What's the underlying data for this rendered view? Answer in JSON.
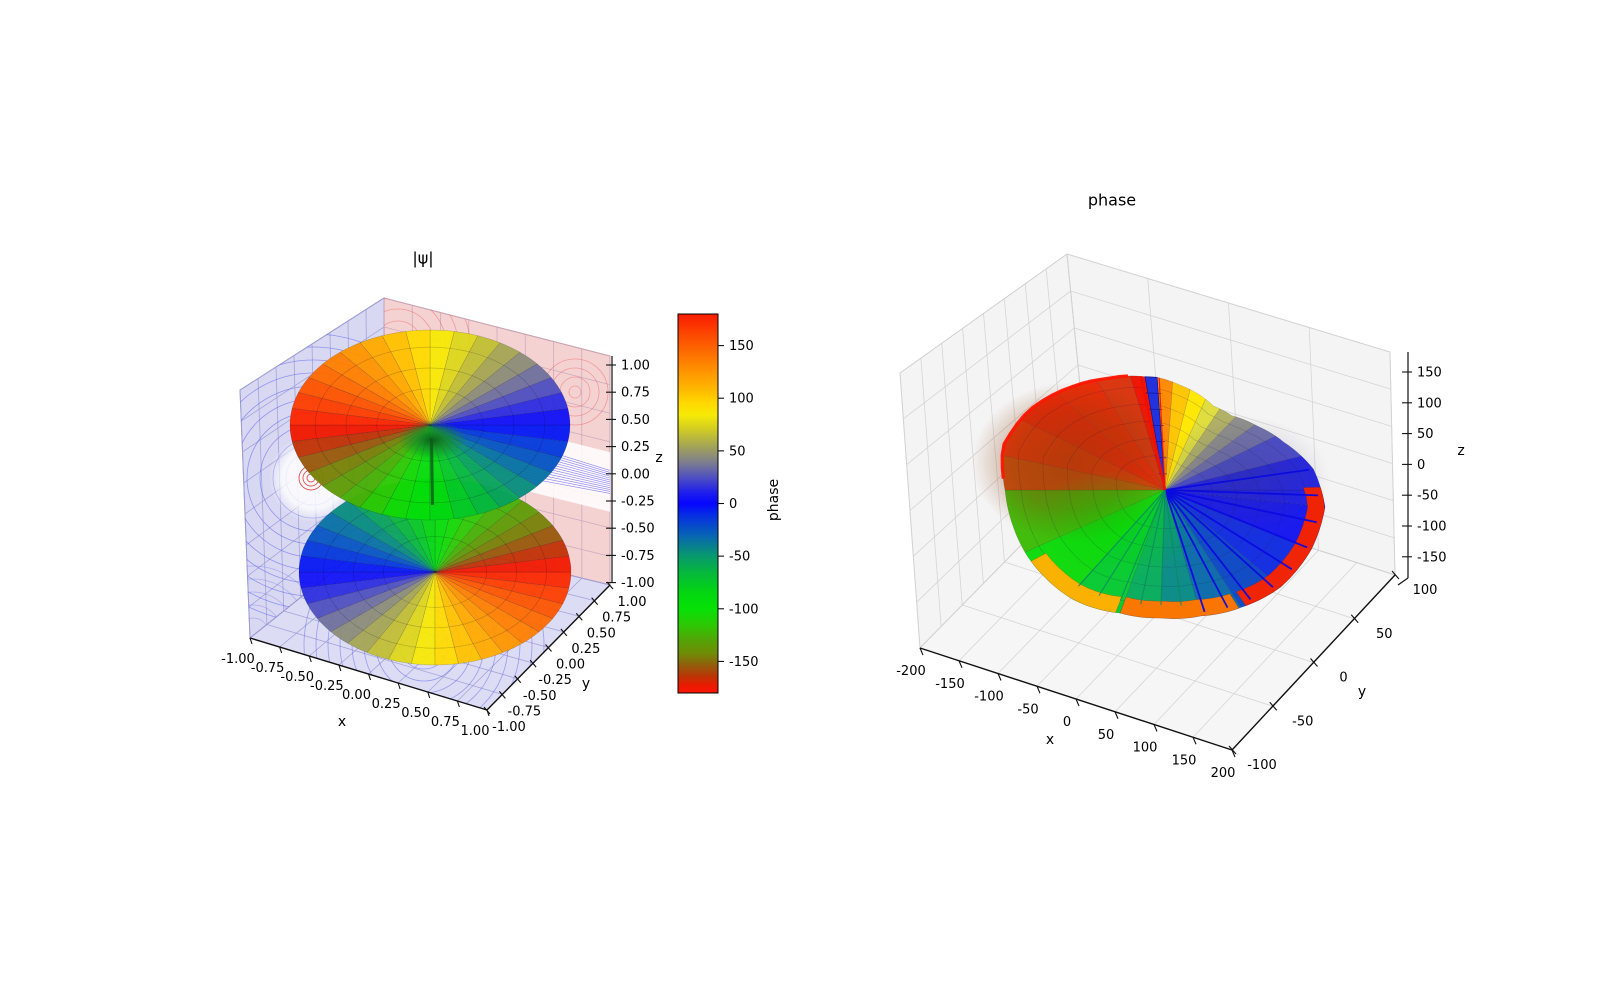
{
  "figure": {
    "background": "#ffffff"
  },
  "left_plot": {
    "title": "|ψ|",
    "xlabel": "x",
    "ylabel": "y",
    "zlabel": "z",
    "x_ticks": [
      "-1.00",
      "-0.75",
      "-0.50",
      "-0.25",
      "0.00",
      "0.25",
      "0.50",
      "0.75",
      "1.00"
    ],
    "y_ticks": [
      "-1.00",
      "-0.75",
      "-0.50",
      "-0.25",
      "0.00",
      "0.25",
      "0.50",
      "0.75",
      "1.00"
    ],
    "z_ticks": [
      "1.00",
      "0.75",
      "0.50",
      "0.25",
      "0.00",
      "-0.25",
      "-0.50",
      "-0.75",
      "-1.00"
    ],
    "pane_colors": {
      "left": "#d8d8f2",
      "right": "#f5d2d2",
      "floor": "#dcdcf4"
    },
    "grid_colors": {
      "left": "#9e9ed8",
      "right": "#c9a6bc",
      "floor": "#9e9ed8"
    },
    "contour_colors": {
      "blue": "#5a5af0",
      "red": "#ee6060"
    }
  },
  "colorbar": {
    "label": "phase",
    "ticks": [
      "150",
      "100",
      "50",
      "0",
      "-50",
      "-100",
      "-150"
    ],
    "tick_values": [
      150,
      100,
      50,
      0,
      -50,
      -100,
      -150
    ],
    "vmin": -180,
    "vmax": 180,
    "stops": [
      [
        180,
        "#fa1c00"
      ],
      [
        150,
        "#fd5f00"
      ],
      [
        122,
        "#fe9b00"
      ],
      [
        108,
        "#ffb900"
      ],
      [
        96,
        "#ffd800"
      ],
      [
        84,
        "#f6ea06"
      ],
      [
        70,
        "#cfcb26"
      ],
      [
        55,
        "#a5a554"
      ],
      [
        40,
        "#80808c"
      ],
      [
        25,
        "#5050c0"
      ],
      [
        10,
        "#1d1dee"
      ],
      [
        0,
        "#0606fe"
      ],
      [
        -12,
        "#0531e2"
      ],
      [
        -30,
        "#0763b5"
      ],
      [
        -48,
        "#089473"
      ],
      [
        -65,
        "#06b73e"
      ],
      [
        -85,
        "#03d611"
      ],
      [
        -100,
        "#06e106"
      ],
      [
        -115,
        "#2cc904"
      ],
      [
        -130,
        "#54a306"
      ],
      [
        -142,
        "#6f8d05"
      ],
      [
        -154,
        "#935c0c"
      ],
      [
        -164,
        "#bb3505"
      ],
      [
        -173,
        "#ec1a01"
      ],
      [
        -180,
        "#fb1500"
      ]
    ]
  },
  "right_plot": {
    "title": "phase",
    "xlabel": "x",
    "ylabel": "y",
    "zlabel": "z",
    "x_ticks": [
      "-200",
      "-150",
      "-100",
      "-50",
      "0",
      "50",
      "100",
      "150",
      "200"
    ],
    "y_ticks": [
      "-100",
      "-50",
      "0",
      "50",
      "100"
    ],
    "z_ticks": [
      "150",
      "100",
      "50",
      "0",
      "-50",
      "-100",
      "-150"
    ],
    "pane_color": "#f4f4f4",
    "grid_color": "#d2d2d2",
    "surface": {
      "center_color_note": "cyclic phase coloring",
      "spoke_color": "#0a0ae0",
      "teal_spoke_color": "#0a8a60",
      "slit_fill": "#2233dd",
      "slit_edge": "#f01000",
      "radii": [
        [
          -180,
          160
        ],
        [
          -155,
          153
        ],
        [
          -130,
          143
        ],
        [
          -110,
          131
        ],
        [
          -92,
          128
        ],
        [
          -74,
          131
        ],
        [
          -57,
          140
        ],
        [
          -40,
          151
        ],
        [
          -22,
          158
        ],
        [
          -6,
          161
        ],
        [
          8,
          150
        ],
        [
          22,
          128
        ],
        [
          35,
          112
        ],
        [
          48,
          100
        ],
        [
          60,
          97
        ],
        [
          72,
          102
        ],
        [
          82,
          106
        ],
        [
          94,
          113
        ],
        [
          100,
          115
        ],
        [
          118,
          126
        ],
        [
          133,
          140
        ],
        [
          150,
          158
        ],
        [
          165,
          168
        ],
        [
          180,
          160
        ]
      ],
      "wedges": [
        {
          "a0": -180,
          "a1": -156,
          "color": "#3dbb05"
        },
        {
          "a0": -156,
          "a1": -132,
          "color": "#0cd90a"
        },
        {
          "a0": -132,
          "a1": -110,
          "color": "#04c930"
        },
        {
          "a0": -110,
          "a1": -92,
          "color": "#06ab5c"
        },
        {
          "a0": -92,
          "a1": -74,
          "color": "#078a85"
        },
        {
          "a0": -74,
          "a1": -57,
          "color": "#0968a8"
        },
        {
          "a0": -57,
          "a1": -40,
          "color": "#0a47c4"
        },
        {
          "a0": -40,
          "a1": -22,
          "color": "#0f2ae0"
        },
        {
          "a0": -22,
          "a1": -6,
          "color": "#1414f0"
        },
        {
          "a0": -6,
          "a1": 0,
          "color": "#1b1be8"
        },
        {
          "a0": 0,
          "a1": 14,
          "color": "#2020e0"
        },
        {
          "a0": 14,
          "a1": 26,
          "color": "#4848c8"
        },
        {
          "a0": 26,
          "a1": 36,
          "color": "#6e6ea8"
        },
        {
          "a0": 36,
          "a1": 46,
          "color": "#8c8c88"
        },
        {
          "a0": 46,
          "a1": 56,
          "color": "#b0b062"
        },
        {
          "a0": 56,
          "a1": 66,
          "color": "#dedc3a"
        },
        {
          "a0": 66,
          "a1": 76,
          "color": "#ffe600"
        },
        {
          "a0": 76,
          "a1": 86,
          "color": "#ffc400"
        },
        {
          "a0": 86,
          "a1": 94,
          "color": "#fd8800"
        },
        {
          "a0": 94,
          "a1": 100,
          "color": "#2233dd"
        },
        {
          "a0": 100,
          "a1": 107,
          "color": "#f01000"
        },
        {
          "a0": 107,
          "a1": 122,
          "color": "#d8320a"
        },
        {
          "a0": 122,
          "a1": 138,
          "color": "#e82602"
        },
        {
          "a0": 138,
          "a1": 154,
          "color": "#f01f01"
        },
        {
          "a0": 154,
          "a1": 168,
          "color": "#ea2f03"
        },
        {
          "a0": 168,
          "a1": 180,
          "color": "#cc4a06"
        }
      ],
      "rim_segments": [
        {
          "a0": -152,
          "a1": -110,
          "color": "#ffb000"
        },
        {
          "a0": -110,
          "a1": -55,
          "color": "#ff7500"
        },
        {
          "a0": -55,
          "a1": 4,
          "color": "#f52500"
        }
      ]
    }
  },
  "chart_data": [
    {
      "type": "surface",
      "title": "|ψ|",
      "xlabel": "x",
      "ylabel": "y",
      "zlabel": "z",
      "xlim": [
        -1,
        1
      ],
      "ylim": [
        -1,
        1
      ],
      "zlim": [
        -1,
        1
      ],
      "x_ticks": [
        -1,
        -0.75,
        -0.5,
        -0.25,
        0,
        0.25,
        0.5,
        0.75,
        1
      ],
      "y_ticks": [
        -1,
        -0.75,
        -0.5,
        -0.25,
        0,
        0.25,
        0.5,
        0.75,
        1
      ],
      "z_ticks": [
        -1,
        -0.75,
        -0.5,
        -0.25,
        0,
        0.25,
        0.5,
        0.75,
        1
      ],
      "grid": true,
      "description": "3D isosurface of wavefunction magnitude |ψ|: two stacked torus-shaped lobes centered on the z axis, surface colored by complex phase (cyclic colormap, phase shifted 180° between upper and lower lobe), with contour projections of the wavefunction drawn on the lavender x/z panes, pink y/z pane and lavender floor pane",
      "colorbar": {
        "label": "phase",
        "range": [
          -180,
          180
        ],
        "ticks": [
          150,
          100,
          50,
          0,
          -50,
          -100,
          -150
        ]
      }
    },
    {
      "type": "surface",
      "title": "phase",
      "xlabel": "x",
      "ylabel": "y",
      "zlabel": "z",
      "xlim": [
        -200,
        200
      ],
      "ylim": [
        -100,
        100
      ],
      "zlim": [
        -180,
        180
      ],
      "x_ticks": [
        -200,
        -150,
        -100,
        -50,
        0,
        50,
        100,
        150,
        200
      ],
      "y_ticks": [
        -100,
        -50,
        0,
        50,
        100
      ],
      "z_ticks": [
        150,
        100,
        50,
        0,
        -50,
        -100,
        -150
      ],
      "grid": true,
      "description": "3D surface of the phase function: a spiral cardioid-like sheet colored by phase (red +180° through yellow, blue 0°, green, back to red −180°) with a vertical discontinuity slit near the top where the phase wraps, blue radial spokes on the right lobe and an orange/red outer rim",
      "colorbar": null
    }
  ]
}
